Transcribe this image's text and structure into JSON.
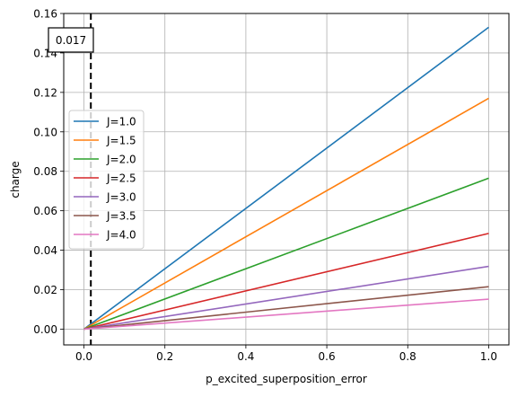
{
  "chart_data": {
    "type": "line",
    "title": "",
    "xlabel": "p_excited_superposition_error",
    "ylabel": "charge",
    "xlim": [
      -0.05,
      1.05
    ],
    "ylim": [
      -0.008,
      0.16
    ],
    "xticks": [
      0.0,
      0.2,
      0.4,
      0.6,
      0.8,
      1.0
    ],
    "xtick_labels": [
      "0.0",
      "0.2",
      "0.4",
      "0.6",
      "0.8",
      "1.0"
    ],
    "yticks": [
      0.0,
      0.02,
      0.04,
      0.06,
      0.08,
      0.1,
      0.12,
      0.14,
      0.16
    ],
    "ytick_labels": [
      "0.00",
      "0.02",
      "0.04",
      "0.06",
      "0.08",
      "0.10",
      "0.12",
      "0.14",
      "0.16"
    ],
    "grid": true,
    "legend_position": "center-left",
    "vline": {
      "x": 0.017,
      "style": "dashed",
      "color": "#000000",
      "label": "0.017"
    },
    "series": [
      {
        "name": "J=1.0",
        "color": "#1f77b4",
        "x": [
          0.0,
          1.0
        ],
        "y": [
          0.0,
          0.153
        ]
      },
      {
        "name": "J=1.5",
        "color": "#ff7f0e",
        "x": [
          0.0,
          1.0
        ],
        "y": [
          0.0,
          0.117
        ]
      },
      {
        "name": "J=2.0",
        "color": "#2ca02c",
        "x": [
          0.0,
          1.0
        ],
        "y": [
          0.0,
          0.0765
        ]
      },
      {
        "name": "J=2.5",
        "color": "#d62728",
        "x": [
          0.0,
          1.0
        ],
        "y": [
          0.0,
          0.0485
        ]
      },
      {
        "name": "J=3.0",
        "color": "#9467bd",
        "x": [
          0.0,
          1.0
        ],
        "y": [
          0.0,
          0.0318
        ]
      },
      {
        "name": "J=3.5",
        "color": "#8c564b",
        "x": [
          0.0,
          1.0
        ],
        "y": [
          0.0,
          0.0215
        ]
      },
      {
        "name": "J=4.0",
        "color": "#e377c2",
        "x": [
          0.0,
          1.0
        ],
        "y": [
          0.0,
          0.0152
        ]
      }
    ]
  }
}
